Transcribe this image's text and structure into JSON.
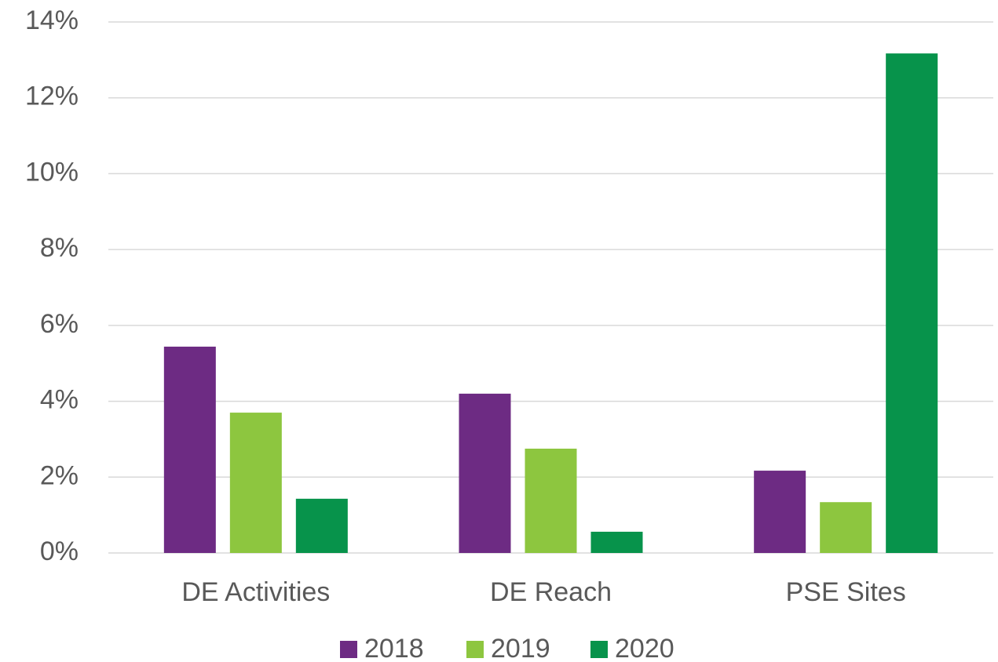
{
  "chart_data": {
    "type": "bar",
    "categories": [
      "DE Activities",
      "DE Reach",
      "PSE Sites"
    ],
    "series": [
      {
        "name": "2018",
        "color": "#6d2b83",
        "values": [
          5.44,
          4.2,
          2.17
        ]
      },
      {
        "name": "2019",
        "color": "#8dc63f",
        "values": [
          3.7,
          2.75,
          1.34
        ]
      },
      {
        "name": "2020",
        "color": "#07934b",
        "values": [
          1.43,
          0.56,
          13.17
        ]
      }
    ],
    "ylim": [
      0,
      14
    ],
    "yticks": [
      {
        "value": 0,
        "label": "0%"
      },
      {
        "value": 2,
        "label": "2%"
      },
      {
        "value": 4,
        "label": "4%"
      },
      {
        "value": 6,
        "label": "6%"
      },
      {
        "value": 8,
        "label": "8%"
      },
      {
        "value": 10,
        "label": "10%"
      },
      {
        "value": 12,
        "label": "12%"
      },
      {
        "value": 14,
        "label": "14%"
      }
    ],
    "grid": true,
    "legend": "bottom"
  }
}
